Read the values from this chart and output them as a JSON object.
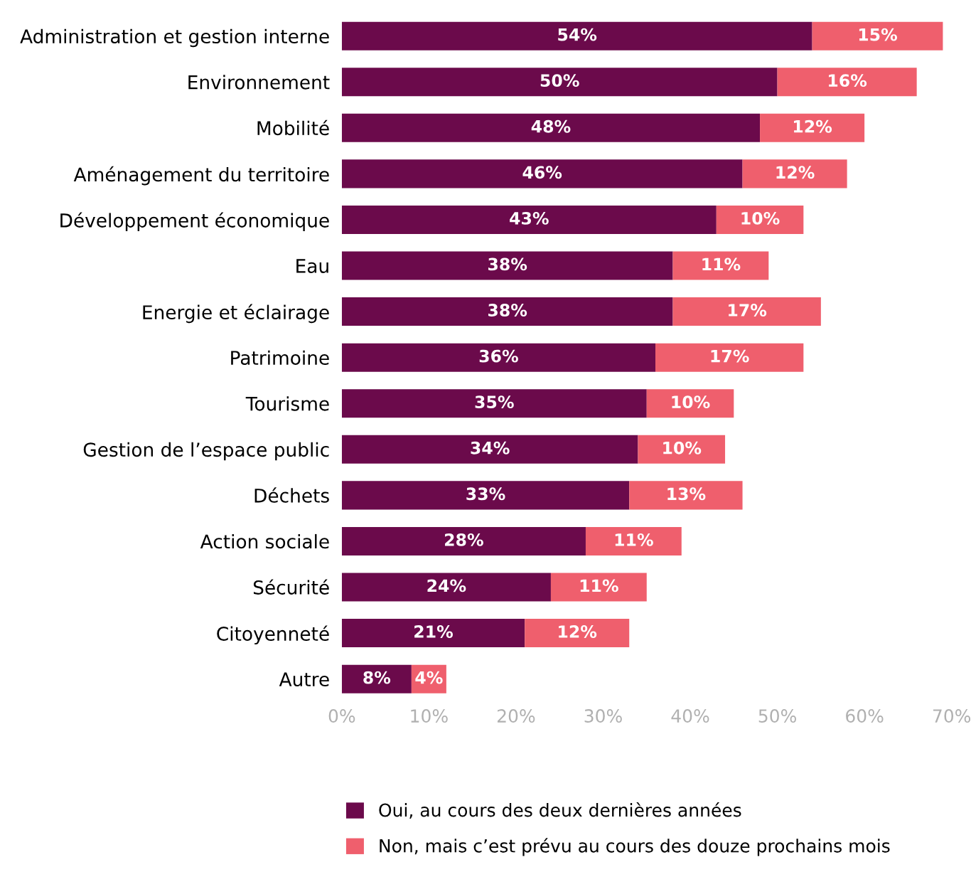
{
  "chart_data": {
    "type": "bar",
    "orientation": "horizontal",
    "stacked": true,
    "categories": [
      "Administration et gestion interne",
      "Environnement",
      "Mobilité",
      "Aménagement du territoire",
      "Développement économique",
      "Eau",
      "Energie et éclairage",
      "Patrimoine",
      "Tourisme",
      "Gestion de l’espace public",
      "Déchets",
      "Action sociale",
      "Sécurité",
      "Citoyenneté",
      "Autre"
    ],
    "series": [
      {
        "name": "Oui, au cours des deux dernières années",
        "color": "#6b0a4b",
        "values": [
          54,
          50,
          48,
          46,
          43,
          38,
          38,
          36,
          35,
          34,
          33,
          28,
          24,
          21,
          8
        ],
        "value_labels": [
          "54%",
          "50%",
          "48%",
          "46%",
          "43%",
          "38%",
          "38%",
          "36%",
          "35%",
          "34%",
          "33%",
          "28%",
          "24%",
          "21%",
          "8%"
        ]
      },
      {
        "name": "Non, mais c’est prévu au cours des douze prochains mois",
        "color": "#ef5f6d",
        "values": [
          15,
          16,
          12,
          12,
          10,
          11,
          17,
          17,
          10,
          10,
          13,
          11,
          11,
          12,
          4
        ],
        "value_labels": [
          "15%",
          "16%",
          "12%",
          "12%",
          "10%",
          "11%",
          "17%",
          "17%",
          "10%",
          "10%",
          "13%",
          "11%",
          "11%",
          "12%",
          "4%"
        ]
      }
    ],
    "xlim": [
      0,
      70
    ],
    "xticks": [
      {
        "value": 0,
        "label": "0%"
      },
      {
        "value": 10,
        "label": "10%"
      },
      {
        "value": 20,
        "label": "20%"
      },
      {
        "value": 30,
        "label": "30%"
      },
      {
        "value": 40,
        "label": "40%"
      },
      {
        "value": 50,
        "label": "50%"
      },
      {
        "value": 60,
        "label": "60%"
      },
      {
        "value": 70,
        "label": "70%"
      }
    ],
    "grid": false,
    "legend": "bottom"
  }
}
